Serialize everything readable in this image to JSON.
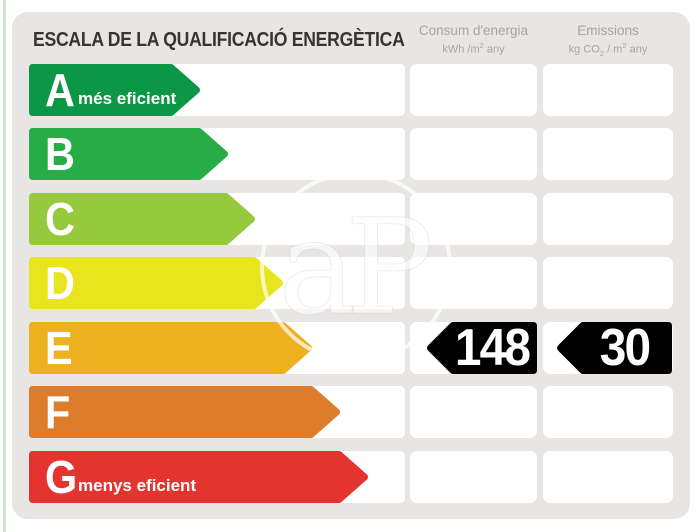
{
  "page": {
    "accent_line_color": "#cfe3cf",
    "panel_background": "#e7e6e5"
  },
  "header": {
    "title": "ESCALA DE LA QUALIFICACIÓ ENERGÈTICA",
    "title_color": "#393331",
    "header_text_color": "#a6a5a3"
  },
  "columns": [
    {
      "title": "Consum d'energia",
      "unit_pre": "kWh /m",
      "unit_sup": "2",
      "unit_post": " any"
    },
    {
      "title": "Emissions",
      "unit_pre": "kg CO",
      "unit_sub": "2",
      "unit_mid": " / m",
      "unit_sup": "2",
      "unit_post": " any"
    }
  ],
  "scale": {
    "rows": [
      {
        "grade": "A",
        "note": "més eficient",
        "color": "#0c9747",
        "arrow_width": 171
      },
      {
        "grade": "B",
        "note": "",
        "color": "#27ad47",
        "arrow_width": 199
      },
      {
        "grade": "C",
        "note": "",
        "color": "#97c93e",
        "arrow_width": 226
      },
      {
        "grade": "D",
        "note": "",
        "color": "#e8e51f",
        "arrow_width": 254
      },
      {
        "grade": "E",
        "note": "",
        "color": "#edb11f",
        "arrow_width": 283
      },
      {
        "grade": "F",
        "note": "",
        "color": "#dd7c2b",
        "arrow_width": 311
      },
      {
        "grade": "G",
        "note": "menys eficient",
        "color": "#e43430",
        "arrow_width": 339
      }
    ]
  },
  "rating": {
    "grade": "E",
    "consumption_value": "148",
    "emissions_value": "30",
    "marker_color": "#000000",
    "text_color": "#ffffff"
  },
  "watermark": {
    "text": "aP"
  },
  "chart_data": {
    "type": "bar",
    "title": "ESCALA DE LA QUALIFICACIÓ ENERGÈTICA",
    "categories": [
      "A",
      "B",
      "C",
      "D",
      "E",
      "F",
      "G"
    ],
    "category_notes": {
      "A": "més eficient",
      "G": "menys eficient"
    },
    "category_colors": [
      "#0c9747",
      "#27ad47",
      "#97c93e",
      "#e8e51f",
      "#edb11f",
      "#dd7c2b",
      "#e43430"
    ],
    "values": [
      171,
      199,
      226,
      254,
      283,
      311,
      339
    ],
    "value_meaning": "relative arrow length per grade (pixels, ordinal scale)",
    "columns": [
      "Consum d'energia (kWh/m2 any)",
      "Emissions (kg CO2/m2 any)"
    ],
    "rating": {
      "grade": "E",
      "consum_kwh_m2_any": 148,
      "emissions_kg_co2_m2_any": 30
    },
    "legend_position": "none",
    "grid": false
  }
}
